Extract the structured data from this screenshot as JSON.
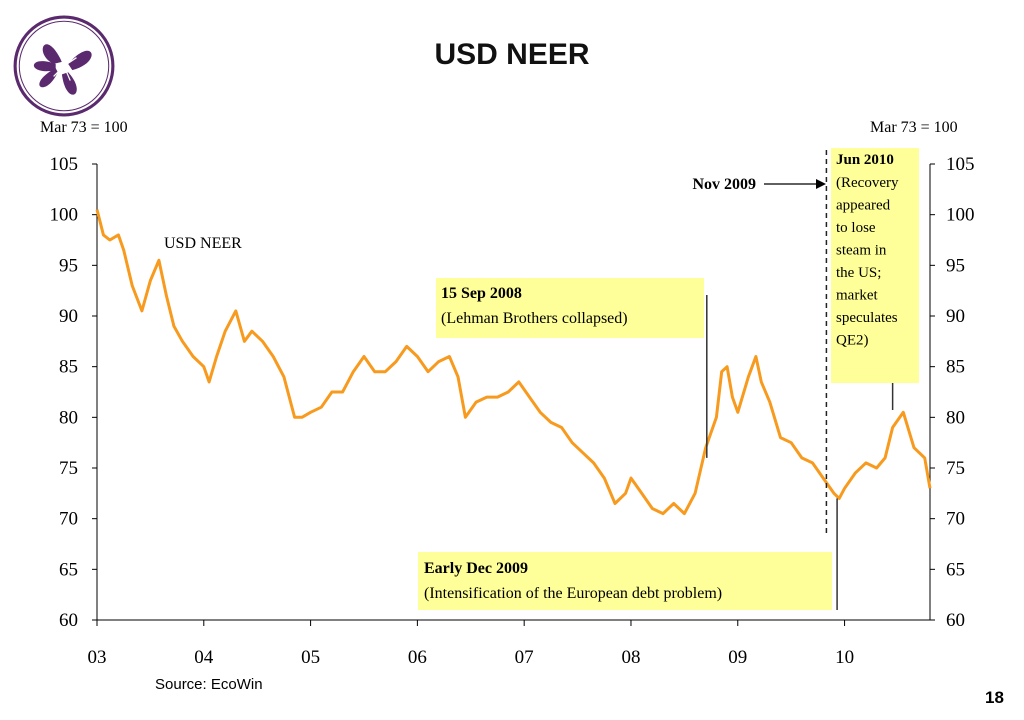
{
  "slide": {
    "title": "USD NEER",
    "left_base_label": "Mar 73 = 100",
    "right_base_label": "Mar 73 = 100",
    "source": "Source: EcoWin",
    "page_number": "18",
    "logo_icon": "bauhinia-flower-logo",
    "accent_color": "#5b2a6e"
  },
  "chart_data": {
    "type": "line",
    "title": "USD NEER",
    "ylim": [
      60,
      105
    ],
    "y_ticks": [
      60,
      65,
      70,
      75,
      80,
      85,
      90,
      95,
      100,
      105
    ],
    "x_ticks": [
      "03",
      "04",
      "05",
      "06",
      "07",
      "08",
      "09",
      "10"
    ],
    "grid": false,
    "series": [
      {
        "name": "USD NEER",
        "color": "#f79a1e",
        "x": [
          2003.0,
          2003.06,
          2003.12,
          2003.2,
          2003.25,
          2003.33,
          2003.42,
          2003.5,
          2003.58,
          2003.65,
          2003.72,
          2003.8,
          2003.9,
          2004.0,
          2004.05,
          2004.12,
          2004.2,
          2004.3,
          2004.38,
          2004.45,
          2004.55,
          2004.65,
          2004.75,
          2004.85,
          2004.92,
          2005.0,
          2005.1,
          2005.2,
          2005.3,
          2005.4,
          2005.5,
          2005.6,
          2005.7,
          2005.8,
          2005.9,
          2006.0,
          2006.1,
          2006.2,
          2006.3,
          2006.38,
          2006.45,
          2006.55,
          2006.65,
          2006.75,
          2006.85,
          2006.95,
          2007.05,
          2007.15,
          2007.25,
          2007.35,
          2007.45,
          2007.55,
          2007.65,
          2007.75,
          2007.85,
          2007.95,
          2008.0,
          2008.1,
          2008.2,
          2008.3,
          2008.4,
          2008.5,
          2008.6,
          2008.7,
          2008.8,
          2008.85,
          2008.9,
          2008.95,
          2009.0,
          2009.1,
          2009.17,
          2009.22,
          2009.3,
          2009.4,
          2009.5,
          2009.6,
          2009.7,
          2009.8,
          2009.9,
          2009.95,
          2010.0,
          2010.1,
          2010.2,
          2010.3,
          2010.38,
          2010.45,
          2010.55,
          2010.65,
          2010.75,
          2010.8
        ],
        "values": [
          100.5,
          98.0,
          97.5,
          98.0,
          96.5,
          93.0,
          90.5,
          93.5,
          95.5,
          92.0,
          89.0,
          87.5,
          86.0,
          85.0,
          83.5,
          86.0,
          88.5,
          90.5,
          87.5,
          88.5,
          87.5,
          86.0,
          84.0,
          80.0,
          80.0,
          80.5,
          81.0,
          82.5,
          82.5,
          84.5,
          86.0,
          84.5,
          84.5,
          85.5,
          87.0,
          86.0,
          84.5,
          85.5,
          86.0,
          84.0,
          80.0,
          81.5,
          82.0,
          82.0,
          82.5,
          83.5,
          82.0,
          80.5,
          79.5,
          79.0,
          77.5,
          76.5,
          75.5,
          74.0,
          71.5,
          72.5,
          74.0,
          72.5,
          71.0,
          70.5,
          71.5,
          70.5,
          72.5,
          77.0,
          80.0,
          84.5,
          85.0,
          82.0,
          80.5,
          84.0,
          86.0,
          83.5,
          81.5,
          78.0,
          77.5,
          76.0,
          75.5,
          74.0,
          72.5,
          72.0,
          73.0,
          74.5,
          75.5,
          75.0,
          76.0,
          79.0,
          80.5,
          77.0,
          76.0,
          73.0
        ]
      }
    ],
    "annotations": [
      {
        "date_label": "15 Sep 2008",
        "text": "(Lehman Brothers collapsed)",
        "x": 2008.71,
        "y": 76.0
      },
      {
        "date_label": "Early Dec 2009",
        "text": "(Intensification of the European debt problem)",
        "x": 2009.93,
        "y": 72.0
      },
      {
        "date_label": "Nov 2009",
        "text": "",
        "x": 2009.83,
        "y": 72.5
      },
      {
        "date_label": "Jun 2010",
        "text": "(Recovery appeared to lose steam in the US; market speculates QE2)",
        "text_lines": [
          "(Recovery",
          "appeared",
          "to lose",
          "steam in",
          "the US;",
          "market",
          "speculates",
          "QE2)"
        ],
        "x": 2010.45,
        "y": 81.0
      }
    ],
    "series_label": "USD NEER"
  }
}
